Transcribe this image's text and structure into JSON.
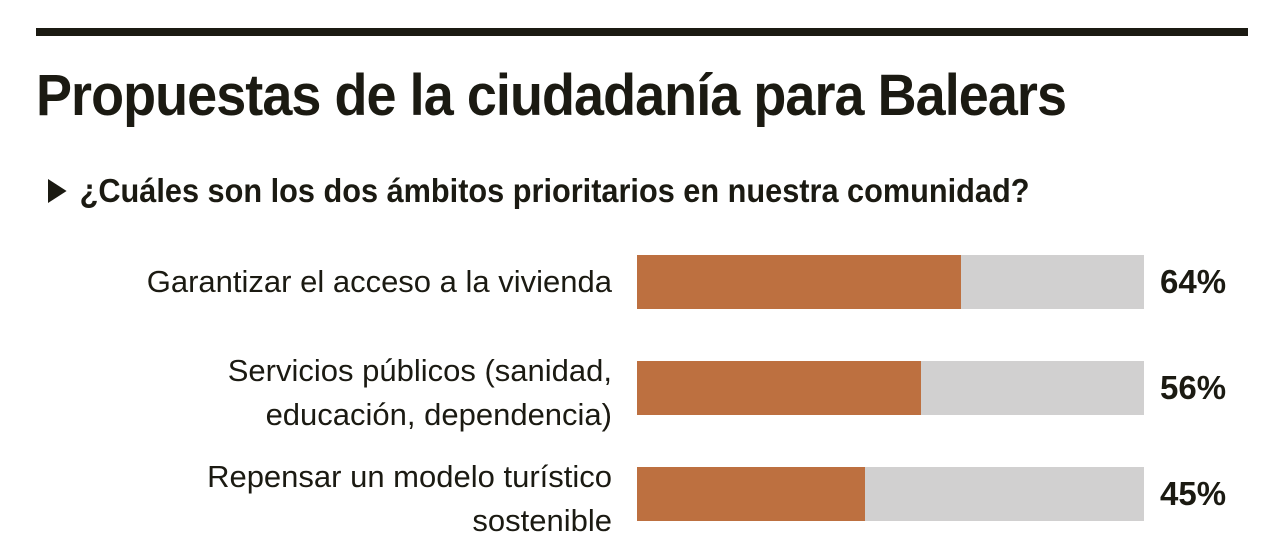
{
  "chart_data": {
    "type": "bar",
    "orientation": "horizontal",
    "title": "Propuestas de la ciudadanía para Balears",
    "subtitle": "¿Cuáles son los dos ámbitos prioritarios en nuestra comunidad?",
    "categories": [
      [
        "Garantizar el acceso a la vivienda"
      ],
      [
        "Servicios públicos (sanidad,",
        "educación, dependencia)"
      ],
      [
        "Repensar un modelo turístico",
        "sostenible"
      ]
    ],
    "values": [
      64,
      56,
      45
    ],
    "value_labels": [
      "64%",
      "56%",
      "45%"
    ],
    "xlim": [
      0,
      100
    ],
    "grid": false,
    "colors": {
      "fill": "#bd7040",
      "track": "#d1d0d0",
      "text": "#1b1a12"
    }
  }
}
